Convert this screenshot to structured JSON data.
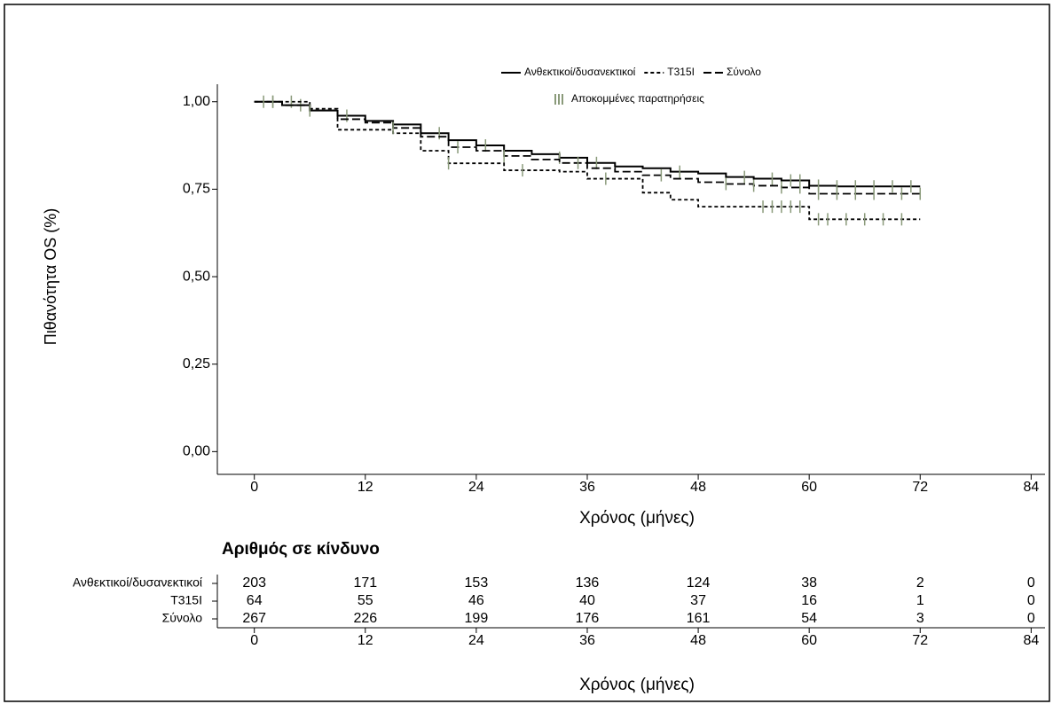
{
  "chart_data": {
    "type": "step",
    "ylabel": "Πιθανότητα OS (%)",
    "xlabel": "Χρόνος (μήνες)",
    "xlim": [
      -4,
      85.5
    ],
    "ylim": [
      -0.065,
      1.05
    ],
    "xticks": [
      0,
      12,
      24,
      36,
      48,
      60,
      72,
      84
    ],
    "yticks": [
      {
        "value": 0,
        "label": "0,00"
      },
      {
        "value": 0.25,
        "label": "0,25"
      },
      {
        "value": 0.5,
        "label": "0,50"
      },
      {
        "value": 0.75,
        "label": "0,75"
      },
      {
        "value": 1,
        "label": "1,00"
      }
    ],
    "x": [
      0,
      3,
      6,
      9,
      12,
      15,
      18,
      21,
      24,
      27,
      30,
      33,
      36,
      39,
      42,
      45,
      48,
      51,
      54,
      57,
      60,
      63,
      66,
      69,
      72
    ],
    "series": [
      {
        "name": "Ανθεκτικοί/δυσανεκτικοί",
        "color": "#000000",
        "dash": "none",
        "values": [
          1.0,
          0.99,
          0.975,
          0.96,
          0.945,
          0.935,
          0.91,
          0.89,
          0.875,
          0.86,
          0.85,
          0.84,
          0.825,
          0.815,
          0.81,
          0.8,
          0.795,
          0.785,
          0.78,
          0.775,
          0.76,
          0.758,
          0.758,
          0.758,
          0.758
        ],
        "censored": [
          2,
          5,
          10,
          20,
          25,
          33,
          37,
          46,
          53,
          56,
          58,
          59,
          61,
          63,
          65,
          67,
          69,
          71
        ]
      },
      {
        "name": "T315I",
        "color": "#000000",
        "dash": "4,3",
        "values": [
          1.0,
          1.0,
          0.98,
          0.92,
          0.92,
          0.91,
          0.86,
          0.824,
          0.824,
          0.804,
          0.804,
          0.8,
          0.78,
          0.78,
          0.74,
          0.72,
          0.7,
          0.7,
          0.7,
          0.7,
          0.664,
          0.664,
          0.664,
          0.664,
          0.664
        ],
        "censored": [
          1,
          4,
          21,
          29,
          38,
          55,
          56,
          57,
          58,
          59,
          61,
          62,
          64,
          66,
          68,
          70
        ]
      },
      {
        "name": "Σύνολο",
        "color": "#000000",
        "dash": "9,4",
        "values": [
          1.0,
          0.99,
          0.975,
          0.95,
          0.94,
          0.925,
          0.9,
          0.87,
          0.86,
          0.845,
          0.835,
          0.825,
          0.81,
          0.8,
          0.79,
          0.78,
          0.77,
          0.765,
          0.76,
          0.755,
          0.737,
          0.737,
          0.737,
          0.737,
          0.737
        ],
        "censored": [
          2,
          6,
          15,
          22,
          27,
          35,
          44,
          51,
          54,
          57,
          59,
          61,
          63,
          65,
          67,
          70,
          72
        ]
      }
    ],
    "censored_label": "Αποκομμένες παρατηρήσεις",
    "censored_color": "#8a9a7a",
    "risk_table": {
      "title": "Αριθμός σε κίνδυνο",
      "times": [
        0,
        12,
        24,
        36,
        48,
        60,
        72,
        84
      ],
      "rows": [
        {
          "name": "Ανθεκτικοί/δυσανεκτικοί",
          "values": [
            203,
            171,
            153,
            136,
            124,
            38,
            2,
            0
          ]
        },
        {
          "name": "T315I",
          "values": [
            64,
            55,
            46,
            40,
            37,
            16,
            1,
            0
          ]
        },
        {
          "name": "Σύνολο",
          "values": [
            267,
            226,
            199,
            176,
            161,
            54,
            3,
            0
          ]
        }
      ]
    }
  }
}
